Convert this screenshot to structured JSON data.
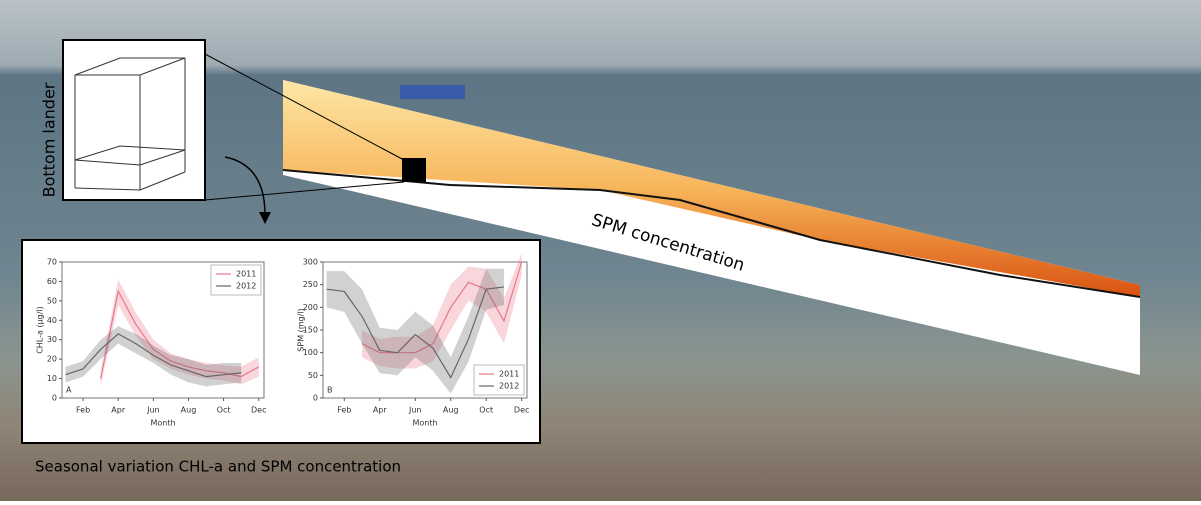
{
  "labels": {
    "lander": "Bottom lander",
    "transect": "SPM concentration",
    "caption": "Seasonal variation CHL-a and SPM concentration"
  },
  "chart_data": [
    {
      "type": "line",
      "panel": "A",
      "ylabel": "CHL-a (µg/l)",
      "xlabel": "Month",
      "x": [
        1,
        2,
        3,
        4,
        5,
        6,
        7,
        8,
        9,
        10,
        11,
        12
      ],
      "xlim": [
        0.8,
        12.3
      ],
      "xticks": [
        {
          "value": 2,
          "label": "Feb"
        },
        {
          "value": 4,
          "label": "Apr"
        },
        {
          "value": 6,
          "label": "Jun"
        },
        {
          "value": 8,
          "label": "Aug"
        },
        {
          "value": 10,
          "label": "Oct"
        },
        {
          "value": 12,
          "label": "Dec"
        }
      ],
      "ylim": [
        0,
        70
      ],
      "yticks": [
        0,
        10,
        20,
        30,
        40,
        50,
        60,
        70
      ],
      "legend": "upper right",
      "series": [
        {
          "name": "2011",
          "color": "#e8788a",
          "values": [
            null,
            null,
            10,
            55,
            38,
            25,
            19,
            16,
            14,
            13,
            11,
            16
          ],
          "lower": [
            null,
            null,
            6,
            48,
            32,
            20,
            15,
            12,
            10,
            9,
            7,
            11
          ],
          "upper": [
            null,
            null,
            14,
            61,
            44,
            30,
            23,
            20,
            18,
            17,
            16,
            21
          ]
        },
        {
          "name": "2012",
          "color": "#666666",
          "values": [
            12,
            15,
            25,
            33,
            28,
            22,
            17,
            14,
            11,
            12,
            13,
            null
          ],
          "lower": [
            8,
            11,
            20,
            28,
            23,
            18,
            12,
            8,
            6,
            7,
            8,
            null
          ],
          "upper": [
            16,
            19,
            30,
            37,
            33,
            27,
            22,
            20,
            17,
            18,
            18,
            null
          ]
        }
      ]
    },
    {
      "type": "line",
      "panel": "B",
      "ylabel": "SPM (mg/l)",
      "xlabel": "Month",
      "x": [
        1,
        2,
        3,
        4,
        5,
        6,
        7,
        8,
        9,
        10,
        11,
        12
      ],
      "xlim": [
        0.8,
        12.3
      ],
      "xticks": [
        {
          "value": 2,
          "label": "Feb"
        },
        {
          "value": 4,
          "label": "Apr"
        },
        {
          "value": 6,
          "label": "Jun"
        },
        {
          "value": 8,
          "label": "Aug"
        },
        {
          "value": 10,
          "label": "Oct"
        },
        {
          "value": 12,
          "label": "Dec"
        }
      ],
      "ylim": [
        0,
        300
      ],
      "yticks": [
        0,
        50,
        100,
        150,
        200,
        250,
        300
      ],
      "legend": "lower right",
      "series": [
        {
          "name": "2011",
          "color": "#e8788a",
          "values": [
            null,
            null,
            120,
            100,
            100,
            100,
            120,
            200,
            255,
            240,
            170,
            300
          ],
          "lower": [
            null,
            null,
            90,
            70,
            65,
            65,
            80,
            150,
            215,
            190,
            120,
            270
          ],
          "upper": [
            null,
            null,
            150,
            130,
            135,
            135,
            160,
            250,
            290,
            285,
            220,
            320
          ]
        },
        {
          "name": "2012",
          "color": "#666666",
          "values": [
            240,
            235,
            180,
            105,
            100,
            140,
            110,
            45,
            130,
            240,
            245,
            null
          ],
          "lower": [
            200,
            190,
            120,
            55,
            50,
            90,
            60,
            10,
            80,
            195,
            205,
            null
          ],
          "upper": [
            280,
            280,
            240,
            155,
            150,
            190,
            160,
            90,
            180,
            285,
            285,
            null
          ]
        }
      ]
    }
  ]
}
